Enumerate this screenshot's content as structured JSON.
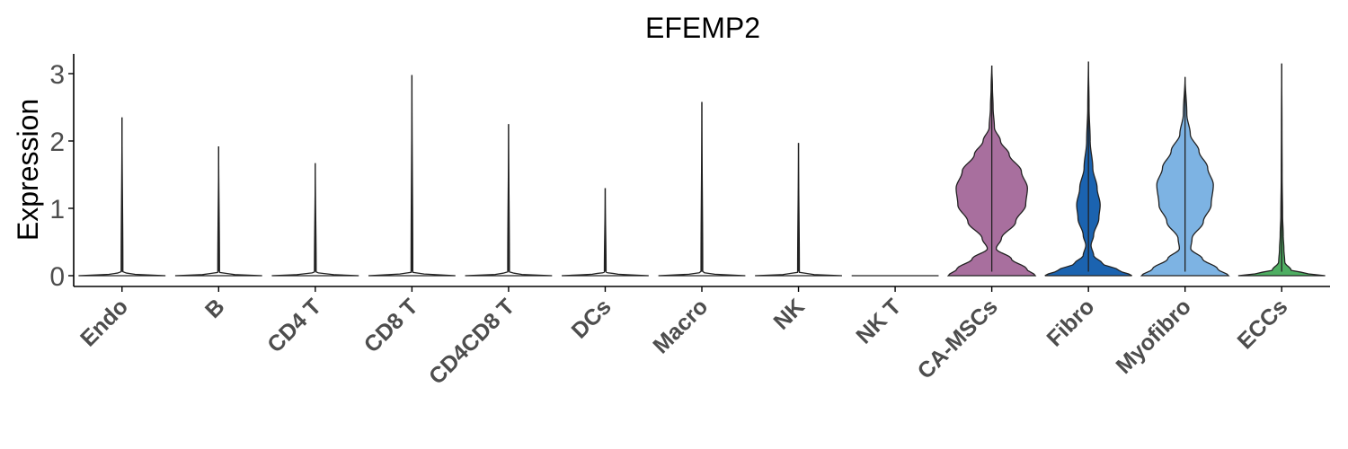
{
  "chart_data": {
    "type": "violin",
    "title": "EFEMP2",
    "xlabel": "",
    "ylabel": "Expression",
    "ylim": [
      -0.15,
      3.3
    ],
    "yticks": [
      0,
      1,
      2,
      3
    ],
    "grid": false,
    "legend": "none",
    "categories": [
      "Endo",
      "B",
      "CD4 T",
      "CD8 T",
      "CD4CD8 T",
      "DCs",
      "Macro",
      "NK",
      "NK T",
      "CA-MSCs",
      "Fibro",
      "Myofibro",
      "ECCs"
    ],
    "colors": [
      "#ffffff",
      "#ffffff",
      "#ffffff",
      "#ffffff",
      "#ffffff",
      "#ffffff",
      "#ffffff",
      "#ffffff",
      "#ffffff",
      "#a86f9e",
      "#1b63b0",
      "#7db3e3",
      "#4eae62"
    ],
    "max_values": [
      2.35,
      1.92,
      1.67,
      2.98,
      2.25,
      1.3,
      2.58,
      1.97,
      0.0,
      3.12,
      3.18,
      2.95,
      3.15
    ],
    "density_profiles": [
      [
        [
          0,
          1
        ],
        [
          0.02,
          0.3
        ],
        [
          0.05,
          0.02
        ],
        [
          2.35,
          0
        ]
      ],
      [
        [
          0,
          1
        ],
        [
          0.02,
          0.3
        ],
        [
          0.05,
          0.02
        ],
        [
          1.92,
          0
        ]
      ],
      [
        [
          0,
          1
        ],
        [
          0.02,
          0.3
        ],
        [
          0.05,
          0.02
        ],
        [
          1.67,
          0
        ]
      ],
      [
        [
          0,
          1
        ],
        [
          0.02,
          0.3
        ],
        [
          0.05,
          0.02
        ],
        [
          2.98,
          0
        ]
      ],
      [
        [
          0,
          1
        ],
        [
          0.02,
          0.3
        ],
        [
          0.05,
          0.02
        ],
        [
          2.25,
          0
        ]
      ],
      [
        [
          0,
          1
        ],
        [
          0.02,
          0.3
        ],
        [
          0.05,
          0.02
        ],
        [
          1.3,
          0
        ]
      ],
      [
        [
          0,
          1
        ],
        [
          0.02,
          0.3
        ],
        [
          0.05,
          0.02
        ],
        [
          2.58,
          0
        ]
      ],
      [
        [
          0,
          1
        ],
        [
          0.02,
          0.3
        ],
        [
          0.05,
          0.02
        ],
        [
          1.97,
          0
        ]
      ],
      [
        [
          0,
          1
        ],
        [
          0.0,
          1
        ]
      ],
      [
        [
          0,
          1
        ],
        [
          0.1,
          0.8
        ],
        [
          0.25,
          0.45
        ],
        [
          0.4,
          0.1
        ],
        [
          0.55,
          0.22
        ],
        [
          0.8,
          0.55
        ],
        [
          1.05,
          0.78
        ],
        [
          1.3,
          0.82
        ],
        [
          1.55,
          0.68
        ],
        [
          1.8,
          0.4
        ],
        [
          2.0,
          0.2
        ],
        [
          2.2,
          0.06
        ],
        [
          2.5,
          0.03
        ],
        [
          2.8,
          0.015
        ],
        [
          3.12,
          0
        ]
      ],
      [
        [
          0,
          1
        ],
        [
          0.08,
          0.7
        ],
        [
          0.18,
          0.32
        ],
        [
          0.3,
          0.12
        ],
        [
          0.45,
          0.06
        ],
        [
          0.6,
          0.12
        ],
        [
          0.85,
          0.24
        ],
        [
          1.05,
          0.27
        ],
        [
          1.3,
          0.2
        ],
        [
          1.6,
          0.1
        ],
        [
          2.0,
          0.04
        ],
        [
          2.5,
          0.015
        ],
        [
          3.18,
          0
        ]
      ],
      [
        [
          0,
          1
        ],
        [
          0.1,
          0.75
        ],
        [
          0.25,
          0.4
        ],
        [
          0.4,
          0.13
        ],
        [
          0.55,
          0.16
        ],
        [
          0.8,
          0.42
        ],
        [
          1.05,
          0.6
        ],
        [
          1.35,
          0.65
        ],
        [
          1.6,
          0.52
        ],
        [
          1.85,
          0.32
        ],
        [
          2.1,
          0.12
        ],
        [
          2.4,
          0.04
        ],
        [
          2.95,
          0
        ]
      ],
      [
        [
          0,
          1
        ],
        [
          0.03,
          0.6
        ],
        [
          0.08,
          0.22
        ],
        [
          0.2,
          0.07
        ],
        [
          0.4,
          0.05
        ],
        [
          0.6,
          0.035
        ],
        [
          0.9,
          0.02
        ],
        [
          1.5,
          0.01
        ],
        [
          2.2,
          0.006
        ],
        [
          3.15,
          0
        ]
      ]
    ]
  }
}
